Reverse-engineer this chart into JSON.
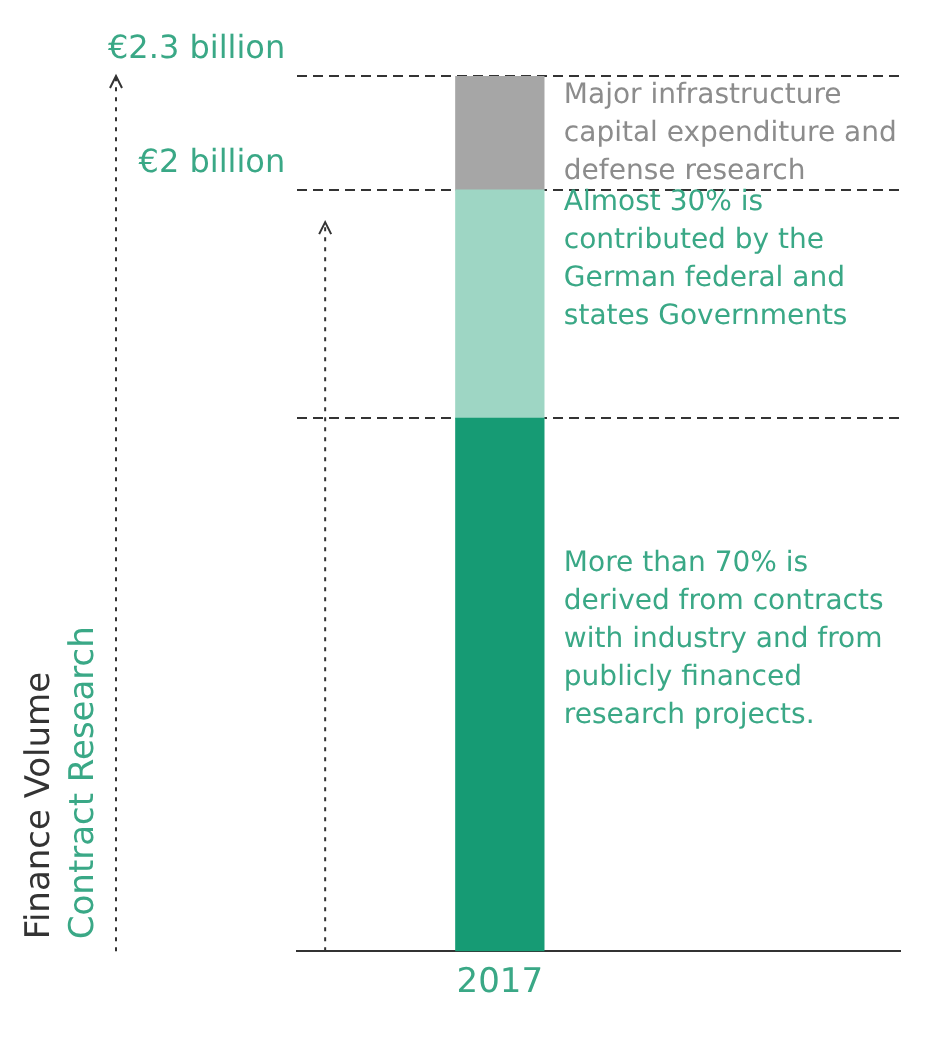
{
  "chart_data": {
    "type": "bar",
    "stacked": true,
    "categories": [
      "2017"
    ],
    "series": [
      {
        "color": "#169b74",
        "values": [
          1.4
        ]
      },
      {
        "color": "#9ed6c4",
        "values": [
          0.6
        ]
      },
      {
        "color": "#a6a6a6",
        "values": [
          0.3
        ]
      }
    ],
    "ylim": [
      0,
      2.3
    ],
    "yticks": [
      {
        "value": 1.4,
        "label": null
      },
      {
        "value": 2,
        "label": "€2 billion"
      },
      {
        "value": 2.3,
        "label": "€2.3 billion"
      }
    ],
    "grid": "y",
    "line_style": "dashed",
    "ylabel": "Finance Volume\nContract Research",
    "annotations": [
      "More than 70% is derived from contracts with industry and from publicly financed research projects.",
      "Almost 30% is contributed by the German federal and states Governments",
      "Major infrastructure capital expenditure and defense research"
    ]
  }
}
